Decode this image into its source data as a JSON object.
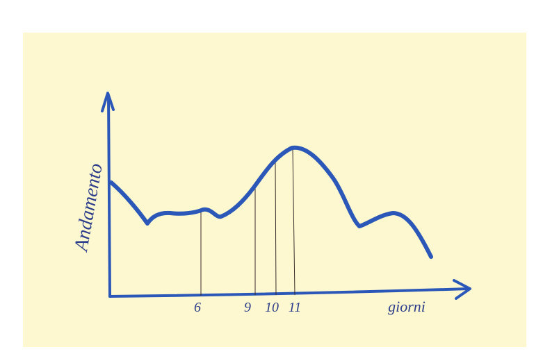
{
  "axes": {
    "y_label": "Andamento",
    "x_label": "giorni"
  },
  "x_marks": [
    "6",
    "9",
    "10",
    "11"
  ]
}
